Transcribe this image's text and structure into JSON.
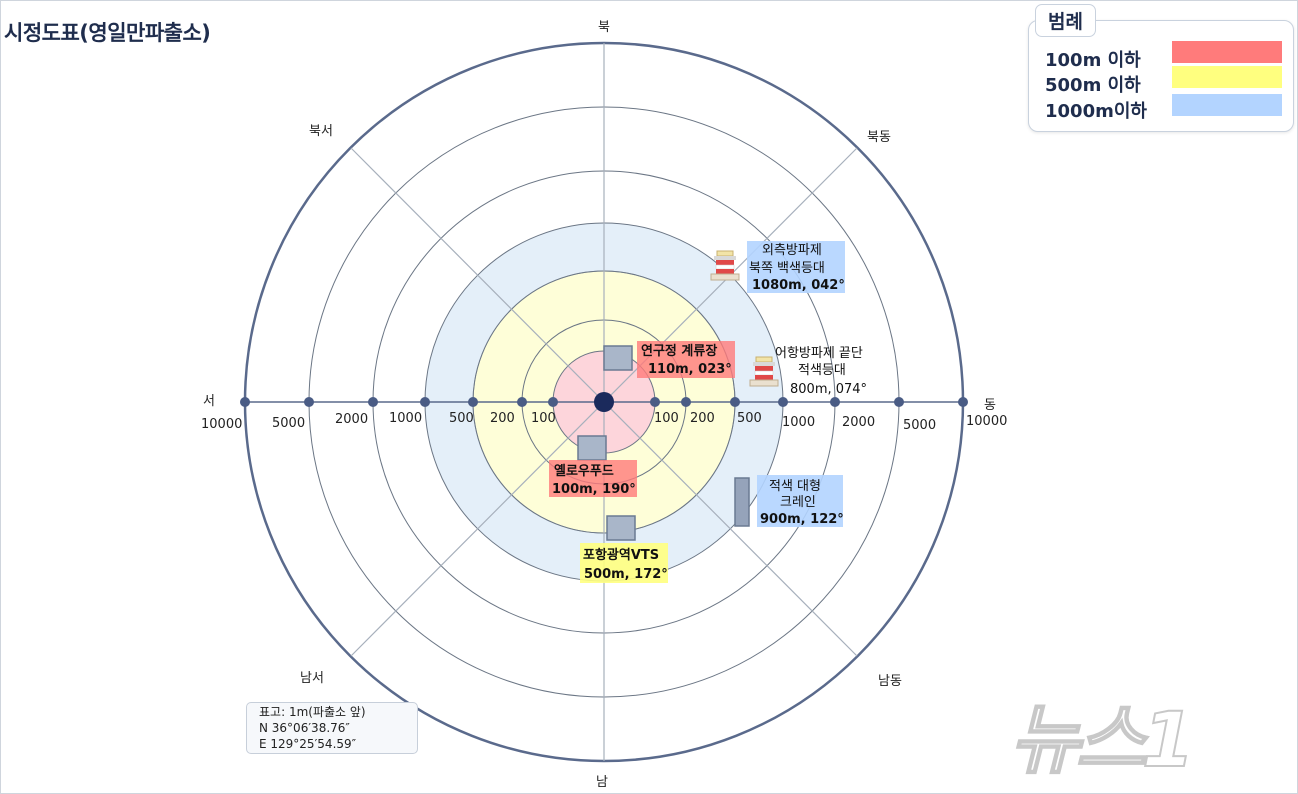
{
  "title": "시정도표(영일만파출소)",
  "directions": {
    "n": "북",
    "ne": "북동",
    "e": "동",
    "se": "남동",
    "s": "남",
    "sw": "남서",
    "w": "서",
    "nw": "북서"
  },
  "distances": [
    "100",
    "200",
    "500",
    "1000",
    "2000",
    "5000",
    "10000"
  ],
  "legend": {
    "title": "범례",
    "items": [
      {
        "label": "100m 이하",
        "color": "#ff7b7b"
      },
      {
        "label": "500m 이하",
        "color": "#ffff7f"
      },
      {
        "label": "1000m이하",
        "color": "#b3d4ff"
      }
    ]
  },
  "zone_colors": {
    "r100": "#fdd5db",
    "r500": "#fefed8",
    "r1000": "#e4eff9"
  },
  "landmarks": {
    "research": {
      "name": "연구정 계류장",
      "value": "110m, 023°"
    },
    "yellowfood": {
      "name": "옐로우푸드",
      "value": "100m, 190°"
    },
    "vts": {
      "name": "포항광역VTS",
      "value": "500m, 172°"
    },
    "crane": {
      "line1": "적색 대형",
      "line2": "크레인",
      "value": "900m, 122°"
    },
    "outer_breakwater": {
      "line1": "외측방파제",
      "line2": "북쪽 백색등대",
      "value": "1080m, 042°"
    },
    "fishing_breakwater": {
      "line1": "어항방파제 끝단",
      "line2": "적색등대",
      "value": "800m, 074°"
    }
  },
  "info": {
    "line1": "표고: 1m(파출소 앞)",
    "line2": "N 36°06′38.76″",
    "line3": "E 129°25′54.59″"
  },
  "watermark": "뉴스1"
}
